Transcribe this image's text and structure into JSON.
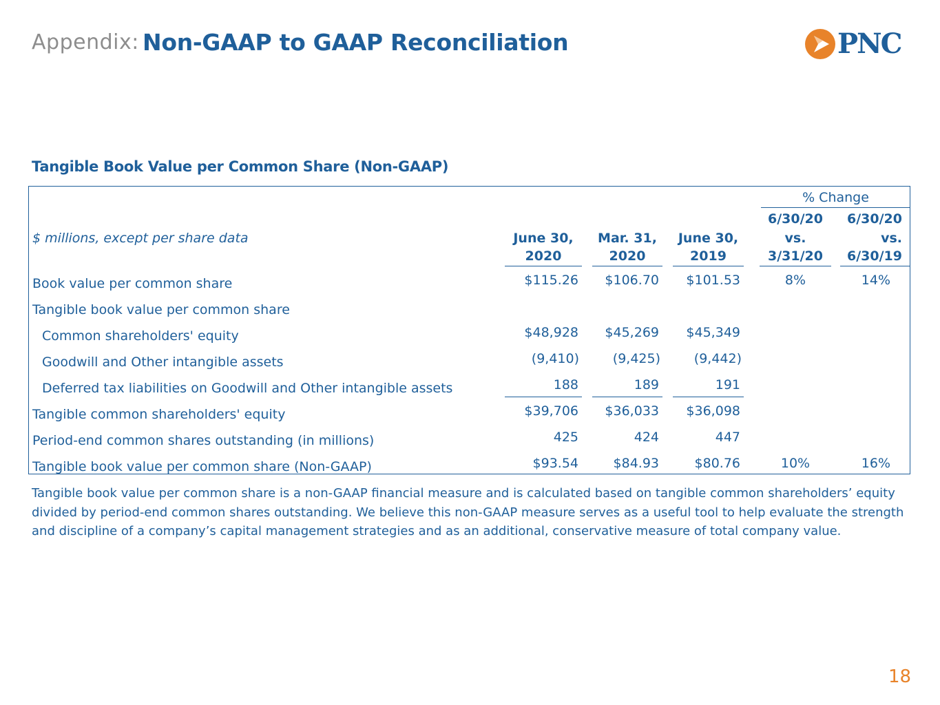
{
  "header": {
    "prefix": "Appendix:",
    "title": "Non-GAAP to GAAP Reconciliation",
    "logo_text": "PNC",
    "logo_alt": "pnc-logo"
  },
  "section_title": "Tangible Book Value per Common Share (Non-GAAP)",
  "table": {
    "pct_change_label": "% Change",
    "units_label": "$ millions, except per share data",
    "columns": [
      {
        "line1": "June 30,",
        "line2": "2020"
      },
      {
        "line1": "Mar. 31,",
        "line2": "2020"
      },
      {
        "line1": "June 30,",
        "line2": "2019"
      },
      {
        "line1": "6/30/20",
        "line2": "vs.",
        "line3": "3/31/20"
      },
      {
        "line1": "6/30/20",
        "line2": "vs.",
        "line3": "6/30/19"
      }
    ],
    "rows": [
      {
        "label": "Book value per common share",
        "c1": "$115.26",
        "c2": "$106.70",
        "c3": "$101.53",
        "p1": "8%",
        "p2": "14%"
      },
      {
        "label": "Tangible book value per common share",
        "c1": "",
        "c2": "",
        "c3": "",
        "p1": "",
        "p2": ""
      },
      {
        "label": "Common shareholders' equity",
        "c1": "$48,928",
        "c2": "$45,269",
        "c3": "$45,349",
        "p1": "",
        "p2": ""
      },
      {
        "label": "Goodwill and Other intangible assets",
        "c1": "(9,410)",
        "c2": "(9,425)",
        "c3": "(9,442)",
        "p1": "",
        "p2": ""
      },
      {
        "label": "Deferred tax liabilities on Goodwill and Other intangible assets",
        "c1": "188",
        "c2": "189",
        "c3": "191",
        "p1": "",
        "p2": ""
      },
      {
        "label": "Tangible common shareholders' equity",
        "c1": "$39,706",
        "c2": "$36,033",
        "c3": "$36,098",
        "p1": "",
        "p2": ""
      },
      {
        "label": "Period-end common shares outstanding (in millions)",
        "c1": "425",
        "c2": "424",
        "c3": "447",
        "p1": "",
        "p2": ""
      },
      {
        "label": "Tangible book value per common share (Non-GAAP)",
        "c1": "$93.54",
        "c2": "$84.93",
        "c3": "$80.76",
        "p1": "10%",
        "p2": "16%"
      }
    ]
  },
  "footnote": "Tangible book value per common share is a non-GAAP financial measure and is calculated based on tangible common shareholders’ equity divided by period-end common shares outstanding. We believe this non-GAAP measure serves as a useful tool to help evaluate the strength and discipline of a company’s capital management strategies and as an additional, conservative measure of total company value.",
  "page_number": "18",
  "colors": {
    "primary": "#1f5f9a",
    "accent": "#e8832a",
    "muted": "#8d8d8d"
  }
}
